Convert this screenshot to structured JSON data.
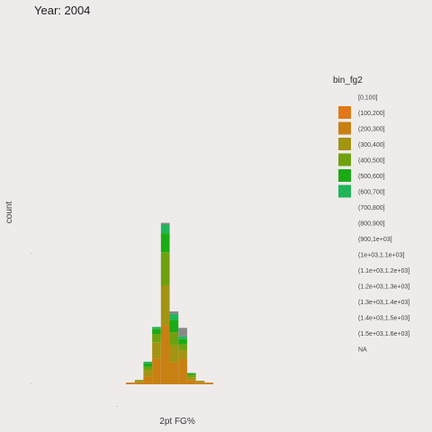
{
  "chart_data": {
    "type": "bar",
    "title": "Year: 2004",
    "xlabel": "2pt FG%",
    "ylabel": "count",
    "x_ticks": [
      "",
      ".",
      "",
      "",
      ""
    ],
    "y_ticks": [
      ".",
      "."
    ],
    "bins": [
      "0.10",
      "0.15",
      "0.20",
      "0.25",
      "0.30",
      "0.35",
      "0.40",
      "0.45",
      "0.50",
      "0.55",
      "0.60",
      "0.65",
      "0.70"
    ],
    "series": [
      {
        "name": "[0,100]",
        "values": [
          0,
          0,
          0,
          0,
          0,
          0,
          0,
          0,
          0,
          0,
          0,
          0,
          0
        ]
      },
      {
        "name": "(100,200]",
        "values": [
          2,
          3,
          9,
          30,
          68,
          25,
          29,
          5,
          2,
          2,
          0,
          0,
          0
        ]
      },
      {
        "name": "(200,300]",
        "values": [
          0,
          1,
          7,
          18,
          46,
          20,
          10,
          3,
          2,
          0,
          0,
          0,
          0
        ]
      },
      {
        "name": "(300,400]",
        "values": [
          0,
          1,
          4,
          10,
          38,
          15,
          7,
          3,
          0,
          0,
          0,
          0,
          0
        ]
      },
      {
        "name": "(400,500]",
        "values": [
          0,
          0,
          4,
          6,
          22,
          14,
          6,
          2,
          0,
          0,
          0,
          0,
          0
        ]
      },
      {
        "name": "(500,600]",
        "values": [
          0,
          0,
          2,
          2,
          10,
          7,
          3,
          0,
          0,
          0,
          0,
          0,
          0
        ]
      },
      {
        "name": "(600,700]",
        "values": [
          0,
          0,
          0,
          0,
          2,
          3,
          10,
          0,
          0,
          0,
          0,
          0,
          0
        ]
      }
    ],
    "colors": [
      "#e07817",
      "#c98012",
      "#a39412",
      "#6fa10e",
      "#1bab14",
      "#1fb558"
    ],
    "legend": {
      "title": "bin_fg2",
      "entries": [
        "[0,100]",
        "(100,200]",
        "(200,300]",
        "(300,400]",
        "(400,500]",
        "(500,600]",
        "(600,700]",
        "(700,800]",
        "(800,900]",
        "(900,1e+03]",
        "(1e+03,1.1e+03]",
        "(1.1e+03,1.2e+03]",
        "(1.2e+03,1.3e+03]",
        "(1.3e+03,1.4e+03]",
        "(1.4e+03,1.5e+03]",
        "(1.5e+03,1.6e+03]",
        "NA"
      ],
      "position": "right"
    },
    "ylim": [
      0,
      340
    ],
    "grid": false
  }
}
